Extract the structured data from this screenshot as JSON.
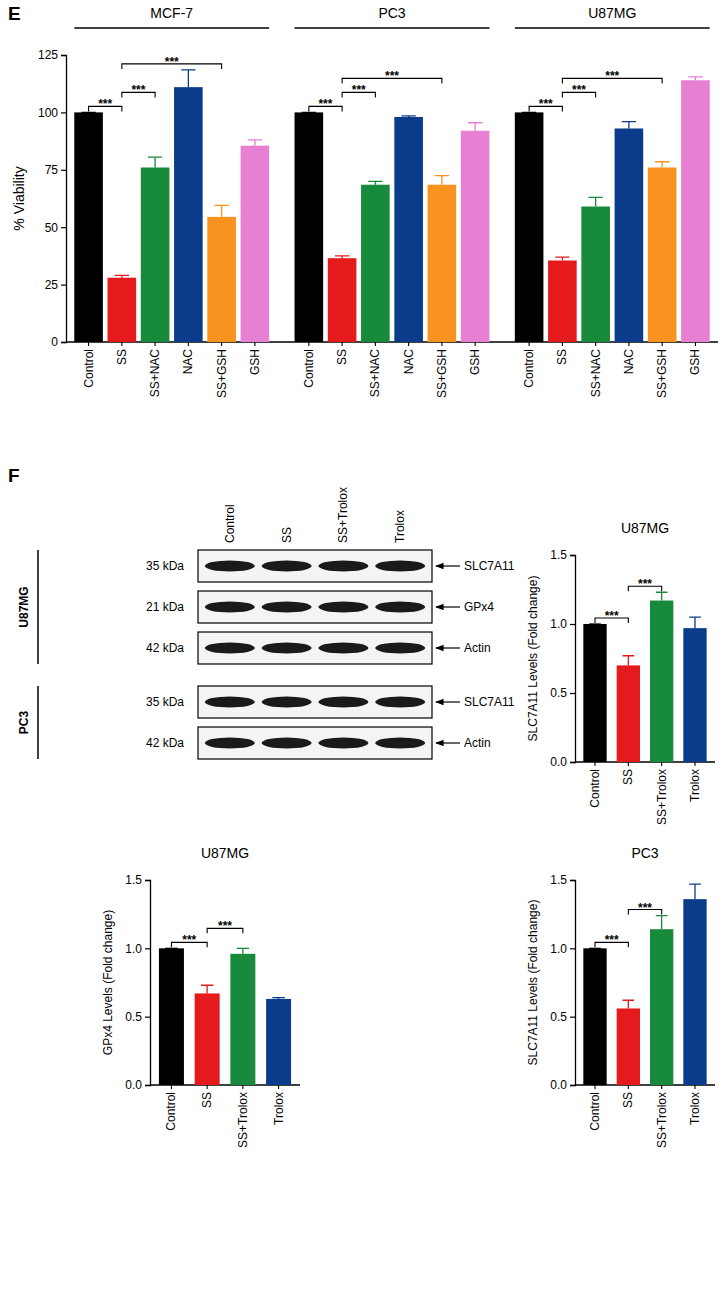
{
  "panel_labels": [
    "E",
    "F"
  ],
  "chart_data": [
    {
      "type": "bar",
      "ylabel": "% Viability",
      "categories": [
        "MCF-7",
        "PC3",
        "U87MG"
      ],
      "series": [
        {
          "name": "Control",
          "color": "#000000",
          "values": [
            100,
            100,
            100
          ],
          "errors": [
            0,
            0,
            0
          ]
        },
        {
          "name": "SS",
          "color": "#e41a1c",
          "values": [
            28,
            36.5,
            35.5
          ],
          "errors": [
            1,
            1,
            1.5
          ]
        },
        {
          "name": "SS+NAC",
          "color": "#178a3b",
          "values": [
            76,
            68.5,
            59
          ],
          "errors": [
            4.5,
            1.5,
            4
          ]
        },
        {
          "name": "NAC",
          "color": "#0b3c8c",
          "values": [
            111,
            98,
            93
          ],
          "errors": [
            7.5,
            0.5,
            3
          ]
        },
        {
          "name": "SS+GSH",
          "color": "#f7931e",
          "values": [
            54.5,
            68.5,
            76
          ],
          "errors": [
            5,
            4,
            2.5
          ]
        },
        {
          "name": "GSH",
          "color": "#e77fd3",
          "values": [
            85.5,
            92,
            114
          ],
          "errors": [
            2.5,
            3.5,
            1.5
          ]
        }
      ],
      "ylim": [
        0,
        125
      ],
      "yticks": [
        0,
        25,
        50,
        75,
        100,
        125
      ],
      "annotations": [
        {
          "text": "***",
          "category": "MCF-7",
          "between": [
            "Control",
            "SS"
          ]
        },
        {
          "text": "***",
          "category": "MCF-7",
          "between": [
            "SS",
            "SS+NAC"
          ]
        },
        {
          "text": "***",
          "category": "MCF-7",
          "between": [
            "SS",
            "SS+GSH"
          ]
        },
        {
          "text": "***",
          "category": "PC3",
          "between": [
            "Control",
            "SS"
          ]
        },
        {
          "text": "***",
          "category": "PC3",
          "between": [
            "SS",
            "SS+NAC"
          ]
        },
        {
          "text": "***",
          "category": "PC3",
          "between": [
            "SS",
            "SS+GSH"
          ]
        },
        {
          "text": "***",
          "category": "U87MG",
          "between": [
            "Control",
            "SS"
          ]
        },
        {
          "text": "***",
          "category": "U87MG",
          "between": [
            "SS",
            "SS+NAC"
          ]
        },
        {
          "text": "***",
          "category": "U87MG",
          "between": [
            "SS",
            "SS+GSH"
          ]
        }
      ]
    },
    {
      "type": "bar",
      "title": "U87MG",
      "ylabel": "SLC7A11 Levels (Fold change)",
      "categories": [
        "Control",
        "SS",
        "SS+Trolox",
        "Trolox"
      ],
      "values": [
        1.0,
        0.7,
        1.17,
        0.97
      ],
      "errors": [
        0,
        0.07,
        0.06,
        0.08
      ],
      "colors": [
        "#000000",
        "#e41a1c",
        "#178a3b",
        "#0b3c8c"
      ],
      "ylim": [
        0,
        1.5
      ],
      "yticks": [
        {
          "value": 0,
          "label": "0.0"
        },
        {
          "value": 0.5,
          "label": "0.5"
        },
        {
          "value": 1,
          "label": "1.0"
        },
        {
          "value": 1.5,
          "label": "1.5"
        }
      ],
      "annotations": [
        {
          "text": "***",
          "between": [
            "Control",
            "SS"
          ]
        },
        {
          "text": "***",
          "between": [
            "SS",
            "SS+Trolox"
          ]
        }
      ]
    },
    {
      "type": "bar",
      "title": "U87MG",
      "ylabel": "GPx4 Levels (Fold change)",
      "categories": [
        "Control",
        "SS",
        "SS+Trolox",
        "Trolox"
      ],
      "values": [
        1.0,
        0.67,
        0.96,
        0.63
      ],
      "errors": [
        0,
        0.06,
        0.04,
        0.01
      ],
      "colors": [
        "#000000",
        "#e41a1c",
        "#178a3b",
        "#0b3c8c"
      ],
      "ylim": [
        0,
        1.5
      ],
      "yticks": [
        {
          "value": 0,
          "label": "0.0"
        },
        {
          "value": 0.5,
          "label": "0.5"
        },
        {
          "value": 1,
          "label": "1.0"
        },
        {
          "value": 1.5,
          "label": "1.5"
        }
      ],
      "annotations": [
        {
          "text": "***",
          "between": [
            "Control",
            "SS"
          ]
        },
        {
          "text": "***",
          "between": [
            "SS",
            "SS+Trolox"
          ]
        }
      ]
    },
    {
      "type": "bar",
      "title": "PC3",
      "ylabel": "SLC7A11 Levels (Fold change)",
      "categories": [
        "Control",
        "SS",
        "SS+Trolox",
        "Trolox"
      ],
      "values": [
        1.0,
        0.56,
        1.14,
        1.36
      ],
      "errors": [
        0,
        0.06,
        0.1,
        0.11
      ],
      "colors": [
        "#000000",
        "#e41a1c",
        "#178a3b",
        "#0b3c8c"
      ],
      "ylim": [
        0,
        1.5
      ],
      "yticks": [
        {
          "value": 0,
          "label": "0.0"
        },
        {
          "value": 0.5,
          "label": "0.5"
        },
        {
          "value": 1,
          "label": "1.0"
        },
        {
          "value": 1.5,
          "label": "1.5"
        }
      ],
      "annotations": [
        {
          "text": "***",
          "between": [
            "Control",
            "SS"
          ]
        },
        {
          "text": "***",
          "between": [
            "SS",
            "SS+Trolox"
          ]
        }
      ]
    }
  ],
  "blot": {
    "lanes": [
      "Control",
      "SS",
      "SS+Trolox",
      "Trolox"
    ],
    "panels": [
      {
        "cell_line": "U87MG",
        "rows": [
          {
            "size": "35 kDa",
            "protein": "SLC7A11"
          },
          {
            "size": "21 kDa",
            "protein": "GPx4"
          },
          {
            "size": "42 kDa",
            "protein": "Actin"
          }
        ]
      },
      {
        "cell_line": "PC3",
        "rows": [
          {
            "size": "35 kDa",
            "protein": "SLC7A11"
          },
          {
            "size": "42 kDa",
            "protein": "Actin"
          }
        ]
      }
    ]
  }
}
